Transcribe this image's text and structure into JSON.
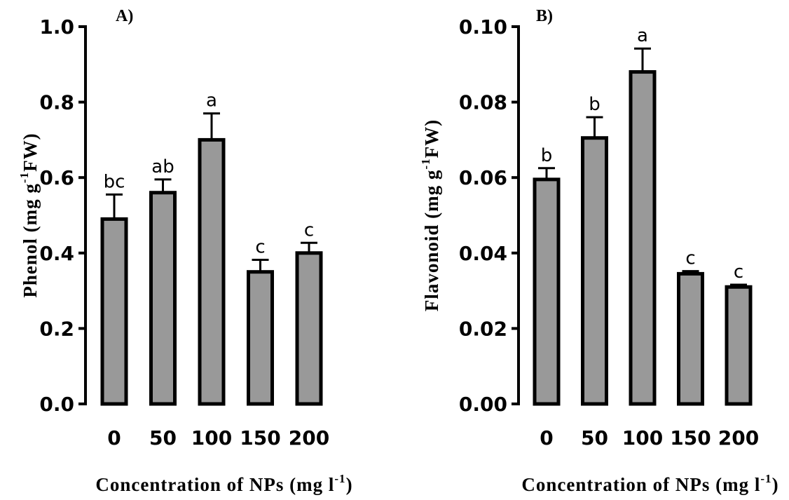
{
  "chart_data": [
    {
      "type": "bar",
      "panel": "A)",
      "categories": [
        "0",
        "50",
        "100",
        "150",
        "200"
      ],
      "values": [
        0.49,
        0.56,
        0.7,
        0.35,
        0.4
      ],
      "errors": [
        0.065,
        0.035,
        0.07,
        0.032,
        0.027
      ],
      "significance": [
        "bc",
        "ab",
        "a",
        "c",
        "c"
      ],
      "ylim": [
        0,
        1.0
      ],
      "yticks": [
        "0.0",
        "0.2",
        "0.4",
        "0.6",
        "0.8",
        "1.0"
      ],
      "ylabel": {
        "main": "Phenol (mg g",
        "sup": "-1",
        "tail": "FW)"
      },
      "xlabel": {
        "main": "Concentration of NPs (mg l",
        "sup": "-1",
        "tail": ")"
      },
      "bar_color": "#999999"
    },
    {
      "type": "bar",
      "panel": "B)",
      "categories": [
        "0",
        "50",
        "100",
        "150",
        "200"
      ],
      "values": [
        0.0595,
        0.0705,
        0.088,
        0.0345,
        0.031
      ],
      "errors": [
        0.003,
        0.0055,
        0.0062,
        0.0007,
        0.0006
      ],
      "significance": [
        "b",
        "b",
        "a",
        "c",
        "c"
      ],
      "ylim": [
        0,
        0.1
      ],
      "yticks": [
        "0.00",
        "0.02",
        "0.04",
        "0.06",
        "0.08",
        "0.10"
      ],
      "ylabel": {
        "main": "Flavonoid (mg g",
        "sup": "-1",
        "tail": "FW)"
      },
      "xlabel": {
        "main": "Concentration of NPs (mg l",
        "sup": "-1",
        "tail": ")"
      },
      "bar_color": "#999999"
    }
  ]
}
